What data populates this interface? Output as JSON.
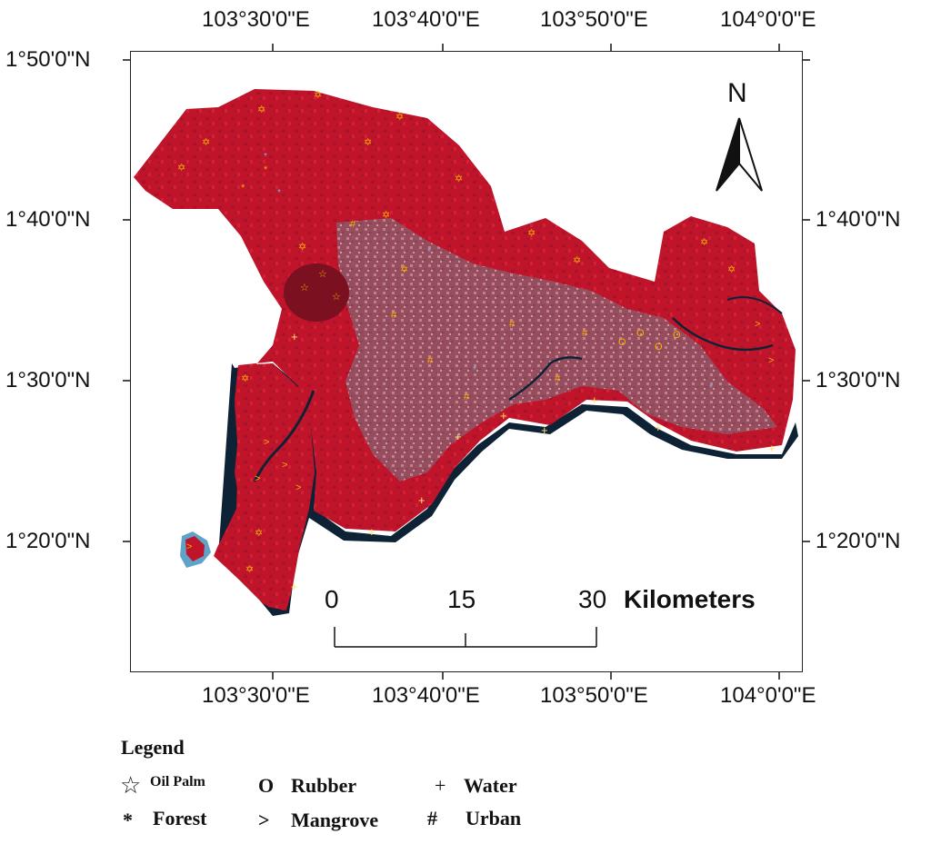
{
  "map": {
    "lon_ticks": [
      "103°30'0\"E",
      "103°40'0\"E",
      "103°50'0\"E",
      "104°0'0\"E"
    ],
    "lat_ticks": [
      "1°50'0\"N",
      "1°40'0\"N",
      "1°30'0\"N",
      "1°20'0\"N"
    ],
    "north_label": "N",
    "scale_bar": {
      "labels": [
        "0",
        "15",
        "30"
      ],
      "unit": "Kilometers"
    },
    "colors": {
      "land": "#c0142a",
      "land_dark": "#8e1020",
      "urban": "#8a7a86",
      "water": "#0e2235",
      "coast_water": "#5fa4c8"
    }
  },
  "legend": {
    "title": "Legend",
    "items": [
      {
        "symbol": "☆",
        "label": "Oil Palm",
        "icon": "star-outline-icon"
      },
      {
        "symbol": "O",
        "label": "Rubber",
        "icon": "circle-letter-icon"
      },
      {
        "symbol": "+",
        "label": "Water",
        "icon": "plus-icon"
      },
      {
        "symbol": "*",
        "label": "Forest",
        "icon": "asterisk-icon"
      },
      {
        "symbol": ">",
        "label": "Mangrove",
        "icon": "greater-than-icon"
      },
      {
        "symbol": "#",
        "label": "Urban",
        "icon": "hash-icon"
      }
    ]
  }
}
